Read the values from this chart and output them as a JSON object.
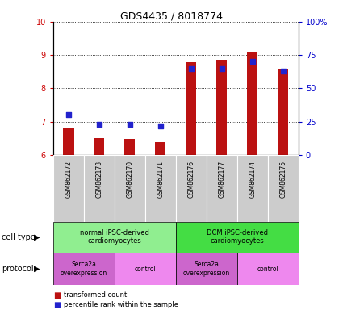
{
  "title": "GDS4435 / 8018774",
  "samples": [
    "GSM862172",
    "GSM862173",
    "GSM862170",
    "GSM862171",
    "GSM862176",
    "GSM862177",
    "GSM862174",
    "GSM862175"
  ],
  "bar_values": [
    6.8,
    6.5,
    6.48,
    6.38,
    8.78,
    8.85,
    9.1,
    8.6
  ],
  "percentile_values": [
    30,
    23,
    23,
    22,
    65,
    65,
    70,
    63
  ],
  "ylim_left": [
    6,
    10
  ],
  "ylim_right": [
    0,
    100
  ],
  "yticks_left": [
    6,
    7,
    8,
    9,
    10
  ],
  "yticks_right": [
    0,
    25,
    50,
    75,
    100
  ],
  "bar_color": "#bb1111",
  "dot_color": "#2222cc",
  "plot_bg": "#ffffff",
  "tick_color_left": "#cc0000",
  "tick_color_right": "#0000cc",
  "cell_type_groups": [
    {
      "label": "normal iPSC-derived\ncardiomyocytes",
      "start": 0,
      "end": 4,
      "color": "#90ee90"
    },
    {
      "label": "DCM iPSC-derived\ncardiomyocytes",
      "start": 4,
      "end": 8,
      "color": "#44dd44"
    }
  ],
  "protocol_groups": [
    {
      "label": "Serca2a\noverexpression",
      "start": 0,
      "end": 2,
      "color": "#cc66cc"
    },
    {
      "label": "control",
      "start": 2,
      "end": 4,
      "color": "#ee88ee"
    },
    {
      "label": "Serca2a\noverexpression",
      "start": 4,
      "end": 6,
      "color": "#cc66cc"
    },
    {
      "label": "control",
      "start": 6,
      "end": 8,
      "color": "#ee88ee"
    }
  ],
  "legend_red_label": "transformed count",
  "legend_blue_label": "percentile rank within the sample",
  "cell_type_label": "cell type",
  "protocol_label": "protocol",
  "sample_bg_color": "#cccccc",
  "bar_width": 0.35
}
